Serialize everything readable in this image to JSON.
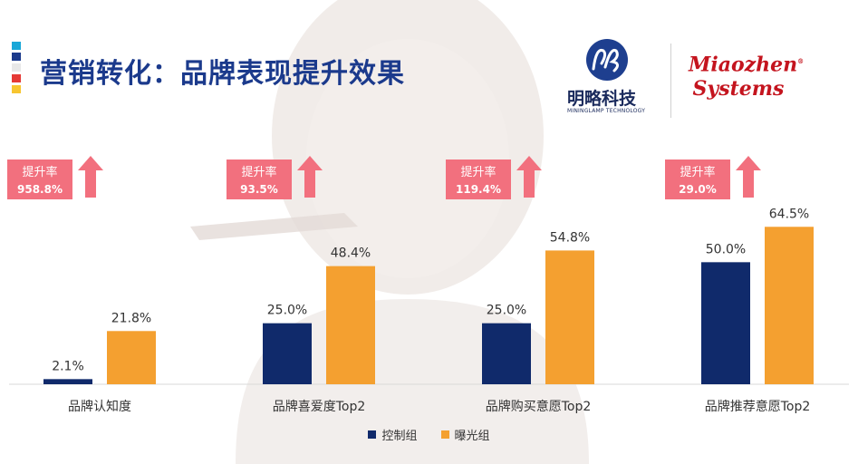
{
  "header": {
    "title": "营销转化：品牌表现提升效果",
    "logo_mininglamp_cn": "明略科技",
    "logo_mininglamp_en": "MININGLAMP TECHNOLOGY",
    "logo_miaozhen_line1": "Miaozhen",
    "logo_miaozhen_line2": "Systems"
  },
  "colors": {
    "title": "#1b3a8c",
    "control": "#102a6b",
    "exposed": "#f4a030",
    "uplift": "#f2707e",
    "strip": [
      "#19a7d8",
      "#1b3a8c",
      "#e8e8e8",
      "#e53935",
      "#f7c530"
    ]
  },
  "uplift_label": "提升率",
  "chart_data": {
    "type": "bar",
    "categories": [
      "品牌认知度",
      "品牌喜爱度Top2",
      "品牌购买意愿Top2",
      "品牌推荐意愿Top2"
    ],
    "series": [
      {
        "name": "控制组",
        "values": [
          2.1,
          25.0,
          25.0,
          50.0
        ]
      },
      {
        "name": "曝光组",
        "values": [
          21.8,
          48.4,
          54.8,
          64.5
        ]
      }
    ],
    "value_labels": [
      [
        "2.1%",
        "25.0%",
        "25.0%",
        "50.0%"
      ],
      [
        "21.8%",
        "48.4%",
        "54.8%",
        "64.5%"
      ]
    ],
    "uplift_rates": [
      "958.8%",
      "93.5%",
      "119.4%",
      "29.0%"
    ],
    "ylim": [
      0,
      75
    ],
    "grid": false,
    "legend_position": "bottom-center"
  }
}
